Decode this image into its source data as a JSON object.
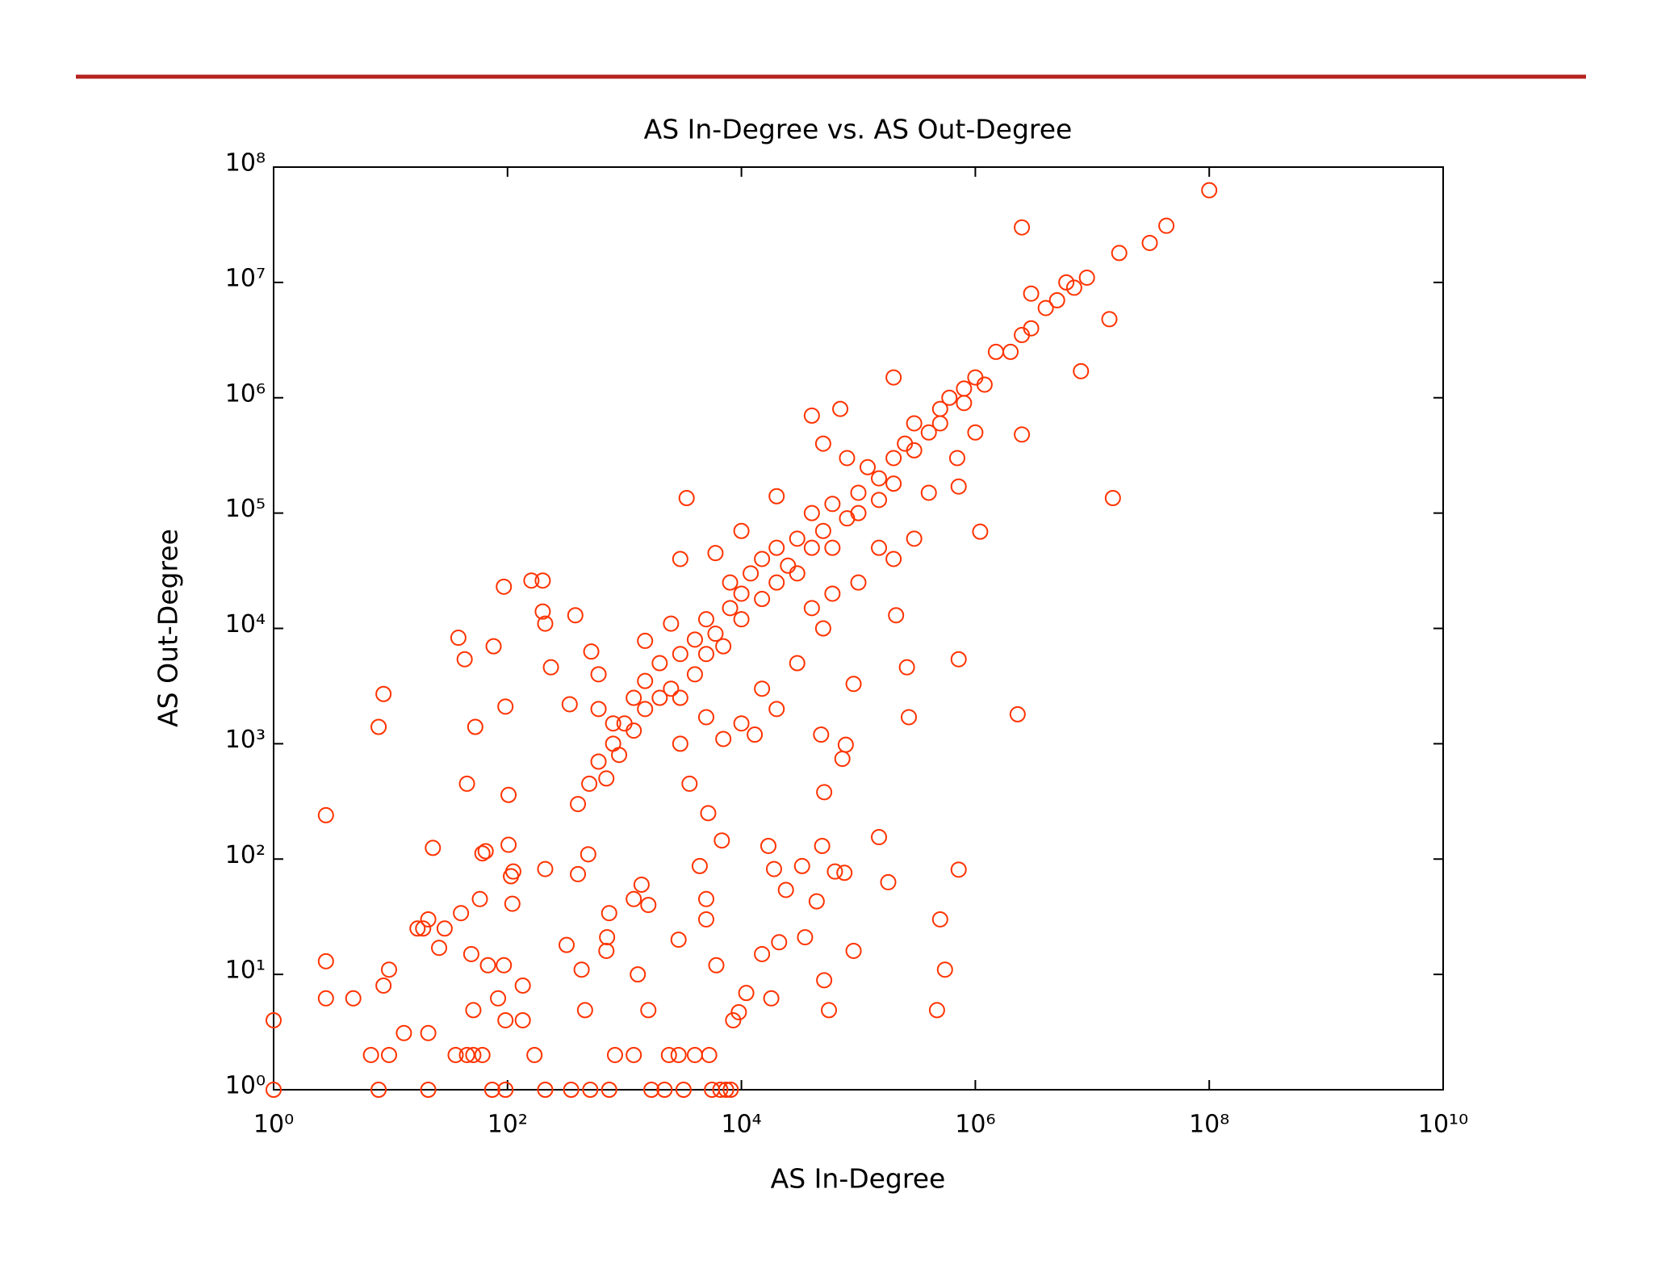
{
  "chart_data": {
    "type": "scatter",
    "title": "AS In-Degree vs. AS Out-Degree",
    "xlabel": "AS In-Degree",
    "ylabel": "AS Out-Degree",
    "xscale": "log",
    "yscale": "log",
    "xlim": [
      1,
      10000000000
    ],
    "ylim": [
      1,
      100000000
    ],
    "xticks": [
      {
        "value": 1,
        "label": "10⁰"
      },
      {
        "value": 100,
        "label": "10²"
      },
      {
        "value": 10000,
        "label": "10⁴"
      },
      {
        "value": 1000000,
        "label": "10⁶"
      },
      {
        "value": 100000000,
        "label": "10⁸"
      },
      {
        "value": 10000000000,
        "label": "10¹⁰"
      }
    ],
    "yticks": [
      {
        "value": 1,
        "label": "10⁰"
      },
      {
        "value": 10,
        "label": "10¹"
      },
      {
        "value": 100,
        "label": "10²"
      },
      {
        "value": 1000,
        "label": "10³"
      },
      {
        "value": 10000,
        "label": "10⁴"
      },
      {
        "value": 100000,
        "label": "10⁵"
      },
      {
        "value": 1000000,
        "label": "10⁶"
      },
      {
        "value": 10000000,
        "label": "10⁷"
      },
      {
        "value": 100000000,
        "label": "10⁸"
      }
    ],
    "grid": false,
    "color": "#ff3300",
    "x": [
      100000000,
      2500000,
      43000000,
      31000000,
      17000000,
      14000000,
      8000000,
      15000000,
      2500000,
      1100000,
      720000,
      720000,
      2300000,
      260000,
      270000,
      210000,
      720000,
      500000,
      550000,
      470000,
      150000,
      180000,
      91000,
      91000,
      78000,
      73000,
      51000,
      48000,
      49000,
      63000,
      76000,
      51000,
      56000,
      35000,
      44000,
      33000,
      24000,
      21000,
      19000,
      17000,
      18000,
      15000,
      11000,
      9500,
      8500,
      6800,
      6100,
      5000,
      5000,
      5200,
      4400,
      3600,
      2900,
      2900,
      2400,
      4000,
      5300,
      1400,
      1200,
      1600,
      1600,
      1300,
      830,
      1200,
      710,
      740,
      700,
      490,
      430,
      460,
      400,
      320,
      210,
      170,
      135,
      135,
      110,
      107,
      112,
      102,
      93,
      96,
      83,
      68,
      65,
      61,
      58,
      49,
      51,
      45,
      51,
      61,
      36,
      40,
      29,
      26,
      21,
      19,
      17,
      23,
      21,
      13,
      9.7,
      8.7,
      6.8,
      9.7,
      4.8,
      2.8,
      2.8,
      2.8,
      1,
      8.7,
      7.9,
      45,
      53,
      43,
      38,
      76,
      96,
      102,
      93,
      160,
      200,
      200,
      210,
      235,
      380,
      340,
      520,
      600,
      1500,
      3400,
      1,
      7.9,
      21,
      74,
      96,
      210,
      350,
      510,
      740,
      1700,
      2200,
      3200,
      5600,
      6600,
      7400,
      8100,
      400,
      500,
      600,
      700,
      800,
      900,
      1000,
      1200,
      1500,
      1500,
      2000,
      2000,
      2500,
      3000,
      3000,
      4000,
      4000,
      5000,
      5000,
      6000,
      7000,
      8000,
      8000,
      10000,
      10000,
      12000,
      15000,
      15000,
      20000,
      20000,
      25000,
      30000,
      30000,
      40000,
      40000,
      50000,
      60000,
      60000,
      80000,
      100000,
      100000,
      120000,
      150000,
      150000,
      200000,
      200000,
      250000,
      300000,
      300000,
      400000,
      500000,
      500000,
      600000,
      800000,
      800000,
      1000000,
      1200000,
      1500000,
      2000000,
      2500000,
      3000000,
      3000000,
      4000000,
      5000000,
      6000000,
      7000000,
      9000000,
      20000,
      40000,
      70000,
      50000,
      200000,
      80000,
      6000,
      3000,
      10000,
      2500,
      1200,
      800,
      5000,
      15000,
      20000,
      30000,
      50000,
      100000,
      200000,
      300000,
      10000,
      7000,
      600,
      3000,
      13000,
      40000,
      60000,
      150000,
      400000,
      700000,
      1000000
    ],
    "values": [
      63000000,
      30000000,
      31000000,
      22000000,
      18000000,
      4800000,
      1700000,
      135000,
      480000,
      69000,
      170000,
      5400,
      1800,
      4600,
      1700,
      13000,
      81,
      30,
      11,
      4.9,
      155,
      63,
      3300,
      16,
      980,
      740,
      380,
      1200,
      130,
      78,
      76,
      8.9,
      4.9,
      21,
      43,
      87,
      54,
      19,
      82,
      130,
      6.2,
      15,
      6.9,
      4.7,
      4,
      145,
      12,
      45,
      30,
      250,
      87,
      450,
      20,
      2,
      2,
      2,
      2,
      60,
      45,
      40,
      4.9,
      10,
      2,
      2,
      21,
      34,
      16,
      110,
      11,
      4.9,
      74,
      18,
      82,
      2,
      4,
      8,
      41,
      71,
      78,
      133,
      12,
      4,
      6.2,
      12,
      117,
      112,
      45,
      15,
      4.9,
      2,
      2,
      2,
      2,
      34,
      25,
      17,
      30,
      25,
      25,
      125,
      3.1,
      3.1,
      11,
      8,
      2,
      2,
      6.2,
      6.2,
      13,
      240,
      4,
      2700,
      1400,
      450,
      1400,
      5400,
      8300,
      7000,
      2100,
      360,
      23000,
      26000,
      26000,
      14000,
      11000,
      4600,
      13000,
      2200,
      6300,
      4000,
      7800,
      135000,
      1,
      1,
      1,
      1,
      1,
      1,
      1,
      1,
      1,
      1,
      1,
      1,
      1,
      1,
      1,
      1,
      300,
      450,
      700,
      500,
      1000,
      800,
      1500,
      1300,
      2000,
      3500,
      2500,
      5000,
      3000,
      6000,
      2500,
      4000,
      8000,
      6000,
      12000,
      9000,
      7000,
      15000,
      25000,
      12000,
      20000,
      30000,
      18000,
      40000,
      25000,
      50000,
      35000,
      60000,
      30000,
      50000,
      100000,
      70000,
      120000,
      50000,
      90000,
      150000,
      100000,
      250000,
      200000,
      130000,
      300000,
      180000,
      400000,
      350000,
      600000,
      500000,
      800000,
      600000,
      1000000,
      1200000,
      900000,
      1500000,
      1300000,
      2500000,
      2500000,
      3500000,
      4000000,
      8000000,
      6000000,
      7000000,
      10000000,
      9000000,
      11000000,
      140000,
      700000,
      800000,
      400000,
      1500000,
      300000,
      45000,
      40000,
      70000,
      11000,
      2500,
      1500,
      1700,
      3000,
      2000,
      5000,
      10000,
      25000,
      40000,
      60000,
      1500,
      1100,
      2000,
      1000,
      1200,
      15000,
      20000,
      50000,
      150000,
      300000,
      500000
    ]
  }
}
